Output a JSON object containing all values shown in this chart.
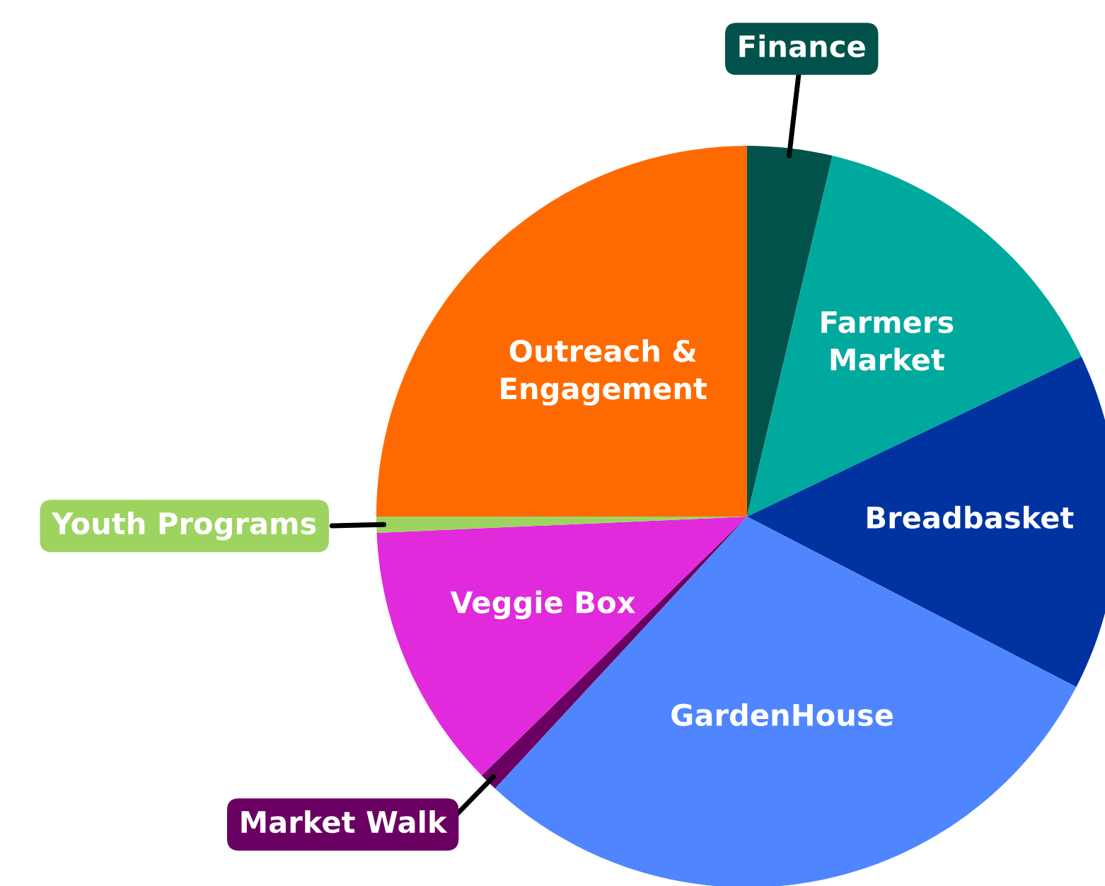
{
  "chart_data": {
    "type": "pie",
    "categories": [
      "Finance",
      "Farmers\nMarket",
      "Breadbasket",
      "GardenHouse",
      "Market Walk",
      "Veggie Box",
      "Youth Programs",
      "Outreach &\nEngagement"
    ],
    "values": [
      3.7,
      14.2,
      14.7,
      29.3,
      0.8,
      11.6,
      0.7,
      25.0
    ],
    "colors": [
      "#00524a",
      "#00a99d",
      "#0033a0",
      "#4f86ff",
      "#6a0061",
      "#e02adb",
      "#9dd45f",
      "#ff6a00"
    ]
  }
}
